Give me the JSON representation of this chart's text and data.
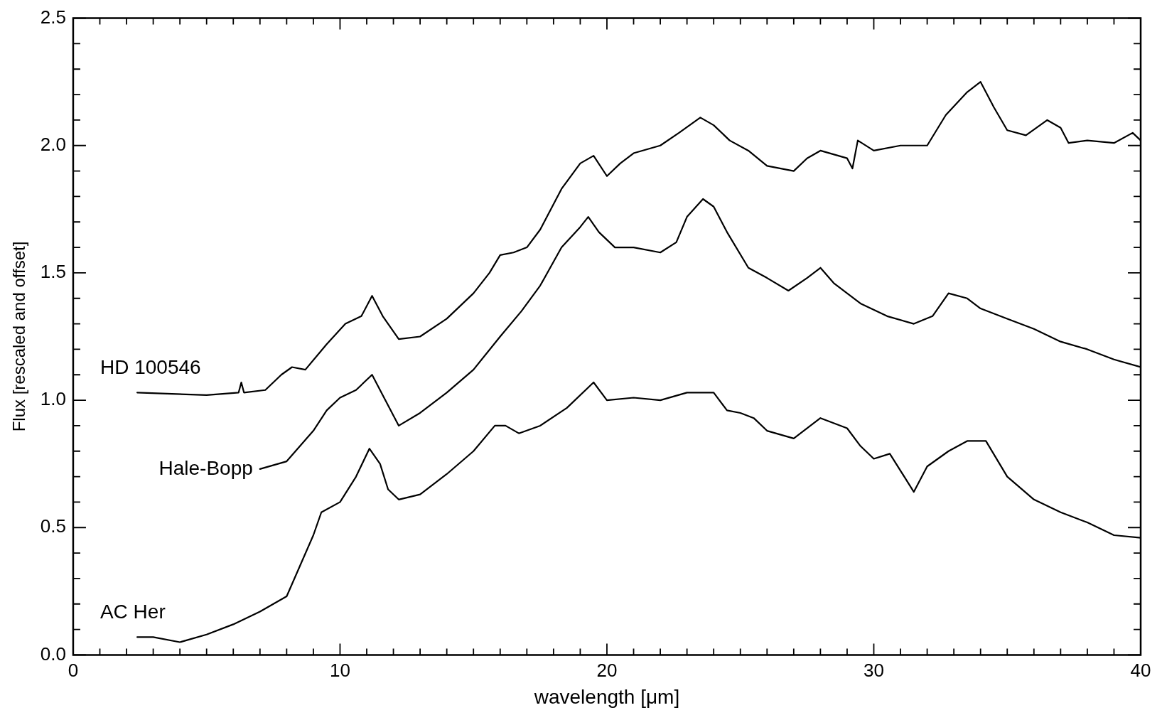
{
  "chart_data": {
    "type": "line",
    "xlabel": "wavelength [μm]",
    "ylabel": "Flux [rescaled and offset]",
    "xlim": [
      0,
      40
    ],
    "ylim": [
      0,
      2.5
    ],
    "xticks": [
      0,
      {
        "value": 1,
        "label": null
      },
      {
        "value": 2,
        "label": null
      },
      {
        "value": 3,
        "label": null
      },
      {
        "value": 4,
        "label": null
      },
      {
        "value": 5,
        "label": null
      },
      {
        "value": 6,
        "label": null
      },
      {
        "value": 7,
        "label": null
      },
      {
        "value": 8,
        "label": null
      },
      {
        "value": 9,
        "label": null
      },
      10,
      {
        "value": 11,
        "label": null
      },
      {
        "value": 12,
        "label": null
      },
      {
        "value": 13,
        "label": null
      },
      {
        "value": 14,
        "label": null
      },
      {
        "value": 15,
        "label": null
      },
      {
        "value": 16,
        "label": null
      },
      {
        "value": 17,
        "label": null
      },
      {
        "value": 18,
        "label": null
      },
      {
        "value": 19,
        "label": null
      },
      20,
      {
        "value": 21,
        "label": null
      },
      {
        "value": 22,
        "label": null
      },
      {
        "value": 23,
        "label": null
      },
      {
        "value": 24,
        "label": null
      },
      {
        "value": 25,
        "label": null
      },
      {
        "value": 26,
        "label": null
      },
      {
        "value": 27,
        "label": null
      },
      {
        "value": 28,
        "label": null
      },
      {
        "value": 29,
        "label": null
      },
      30,
      {
        "value": 31,
        "label": null
      },
      {
        "value": 32,
        "label": null
      },
      {
        "value": 33,
        "label": null
      },
      {
        "value": 34,
        "label": null
      },
      {
        "value": 35,
        "label": null
      },
      {
        "value": 36,
        "label": null
      },
      {
        "value": 37,
        "label": null
      },
      {
        "value": 38,
        "label": null
      },
      {
        "value": 39,
        "label": null
      },
      40
    ],
    "yticks": [
      {
        "value": 0,
        "label": "0.0"
      },
      {
        "value": 0.1,
        "label": null
      },
      {
        "value": 0.2,
        "label": null
      },
      {
        "value": 0.3,
        "label": null
      },
      {
        "value": 0.4,
        "label": null
      },
      {
        "value": 0.5,
        "label": "0.5"
      },
      {
        "value": 0.6,
        "label": null
      },
      {
        "value": 0.7,
        "label": null
      },
      {
        "value": 0.8,
        "label": null
      },
      {
        "value": 0.9,
        "label": null
      },
      {
        "value": 1,
        "label": "1.0"
      },
      {
        "value": 1.1,
        "label": null
      },
      {
        "value": 1.2,
        "label": null
      },
      {
        "value": 1.3,
        "label": null
      },
      {
        "value": 1.4,
        "label": null
      },
      {
        "value": 1.5,
        "label": "1.5"
      },
      {
        "value": 1.6,
        "label": null
      },
      {
        "value": 1.7,
        "label": null
      },
      {
        "value": 1.8,
        "label": null
      },
      {
        "value": 1.9,
        "label": null
      },
      {
        "value": 2,
        "label": "2.0"
      },
      {
        "value": 2.1,
        "label": null
      },
      {
        "value": 2.2,
        "label": null
      },
      {
        "value": 2.3,
        "label": null
      },
      {
        "value": 2.4,
        "label": null
      },
      {
        "value": 2.5,
        "label": "2.5"
      }
    ],
    "marker": "none",
    "line_style": "solid",
    "series": [
      {
        "name": "HD 100546",
        "color": "#000000",
        "x": [
          2.4,
          5,
          6.2,
          6.3,
          6.4,
          7.2,
          7.8,
          8.2,
          8.7,
          9.5,
          10.2,
          10.8,
          11.2,
          11.6,
          12.2,
          13,
          14,
          15,
          15.6,
          16,
          16.5,
          17,
          17.5,
          18.3,
          19,
          19.5,
          20,
          20.5,
          21,
          22,
          22.7,
          23.5,
          24,
          24.6,
          25.3,
          26,
          27,
          27.5,
          28,
          29,
          29.2,
          29.4,
          30,
          31,
          32,
          32.7,
          33.5,
          34,
          34.5,
          35,
          35.7,
          36.5,
          37,
          37.3,
          38,
          39,
          39.7,
          40
        ],
        "values": [
          1.03,
          1.02,
          1.03,
          1.07,
          1.03,
          1.04,
          1.1,
          1.13,
          1.12,
          1.22,
          1.3,
          1.33,
          1.41,
          1.33,
          1.24,
          1.25,
          1.32,
          1.42,
          1.5,
          1.57,
          1.58,
          1.6,
          1.67,
          1.83,
          1.93,
          1.96,
          1.88,
          1.93,
          1.97,
          2.0,
          2.05,
          2.11,
          2.08,
          2.02,
          1.98,
          1.92,
          1.9,
          1.95,
          1.98,
          1.95,
          1.91,
          2.02,
          1.98,
          2.0,
          2.0,
          2.12,
          2.21,
          2.25,
          2.15,
          2.06,
          2.04,
          2.1,
          2.07,
          2.01,
          2.02,
          2.01,
          2.05,
          2.02
        ]
      },
      {
        "name": "Hale-Bopp",
        "color": "#000000",
        "x": [
          7,
          8,
          9,
          9.5,
          10,
          10.6,
          11.2,
          11.6,
          12.2,
          13,
          14,
          15,
          16,
          16.8,
          17.5,
          18.3,
          19,
          19.3,
          19.7,
          20.3,
          21,
          22,
          22.6,
          23,
          23.6,
          24,
          24.5,
          25.3,
          26,
          26.8,
          27.5,
          28,
          28.5,
          29.5,
          30.5,
          31.5,
          32.2,
          32.8,
          33.5,
          34,
          35,
          36,
          37,
          38,
          39,
          40
        ],
        "values": [
          0.73,
          0.76,
          0.88,
          0.96,
          1.01,
          1.04,
          1.1,
          1.02,
          0.9,
          0.95,
          1.03,
          1.12,
          1.25,
          1.35,
          1.45,
          1.6,
          1.68,
          1.72,
          1.66,
          1.6,
          1.6,
          1.58,
          1.62,
          1.72,
          1.79,
          1.76,
          1.66,
          1.52,
          1.48,
          1.43,
          1.48,
          1.52,
          1.46,
          1.38,
          1.33,
          1.3,
          1.33,
          1.42,
          1.4,
          1.36,
          1.32,
          1.28,
          1.23,
          1.2,
          1.16,
          1.13
        ]
      },
      {
        "name": "AC Her",
        "color": "#000000",
        "x": [
          2.4,
          3,
          4,
          5,
          6,
          7,
          8,
          8.5,
          9,
          9.3,
          10,
          10.6,
          11.1,
          11.5,
          11.8,
          12.2,
          13,
          14,
          15,
          15.8,
          16.2,
          16.7,
          17.5,
          18.5,
          19.5,
          20,
          21,
          22,
          23,
          24,
          24.5,
          25,
          25.5,
          26,
          27,
          28,
          29,
          29.5,
          30,
          30.6,
          31.5,
          32,
          32.8,
          33.5,
          34.2,
          35,
          36,
          37,
          38,
          39,
          40
        ],
        "values": [
          0.07,
          0.07,
          0.05,
          0.08,
          0.12,
          0.17,
          0.23,
          0.35,
          0.47,
          0.56,
          0.6,
          0.7,
          0.81,
          0.75,
          0.65,
          0.61,
          0.63,
          0.71,
          0.8,
          0.9,
          0.9,
          0.87,
          0.9,
          0.97,
          1.07,
          1.0,
          1.01,
          1.0,
          1.03,
          1.03,
          0.96,
          0.95,
          0.93,
          0.88,
          0.85,
          0.93,
          0.89,
          0.82,
          0.77,
          0.79,
          0.64,
          0.74,
          0.8,
          0.84,
          0.84,
          0.7,
          0.61,
          0.56,
          0.52,
          0.47,
          0.46
        ]
      }
    ]
  }
}
